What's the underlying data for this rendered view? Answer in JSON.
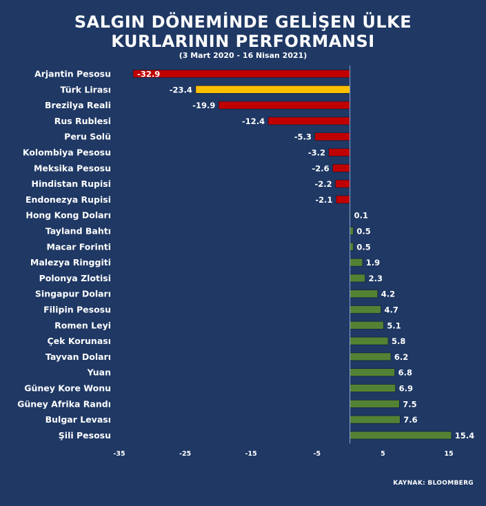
{
  "header": {
    "title_line1": "SALGIN DÖNEMİNDE GELİŞEN ÜLKE",
    "title_line2": "KURLARININ PERFORMANSI",
    "subtitle": "(3 Mart 2020 - 16 Nisan 2021)"
  },
  "footer": {
    "source": "KAYNAK: BLOOMBERG"
  },
  "colors": {
    "background": "#1f3864",
    "negative": "#c00000",
    "highlight": "#ffc000",
    "positive": "#548235"
  },
  "chart_data": {
    "type": "bar",
    "orientation": "horizontal",
    "title": "SALGIN DÖNEMİNDE GELİŞEN ÜLKE KURLARININ PERFORMANSI",
    "subtitle": "(3 Mart 2020 - 16 Nisan 2021)",
    "categories": [
      "Arjantin Pesosu",
      "Türk Lirası",
      "Brezilya Reali",
      "Rus Rublesi",
      "Peru Solü",
      "Kolombiya Pesosu",
      "Meksika Pesosu",
      "Hindistan Rupisi",
      "Endonezya Rupisi",
      "Hong Kong Doları",
      "Tayland Bahtı",
      "Macar Forinti",
      "Malezya Ringgiti",
      "Polonya Zlotisi",
      "Singapur Doları",
      "Filipin Pesosu",
      "Romen Leyi",
      "Çek Korunası",
      "Tayvan Doları",
      "Yuan",
      "Güney Kore Wonu",
      "Güney Afrika Randı",
      "Bulgar Levası",
      "Şili Pesosu"
    ],
    "values": [
      -32.9,
      -23.4,
      -19.9,
      -12.4,
      -5.3,
      -3.2,
      -2.6,
      -2.2,
      -2.1,
      0.1,
      0.5,
      0.5,
      1.9,
      2.3,
      4.2,
      4.7,
      5.1,
      5.8,
      6.2,
      6.8,
      6.9,
      7.5,
      7.6,
      15.4
    ],
    "value_labels": [
      "-32.9",
      "-23.4",
      "-19.9",
      "-12.4",
      "-5.3",
      "-3.2",
      "-2.6",
      "-2.2",
      "-2.1",
      "0.1",
      "0.5",
      "0.5",
      "1.9",
      "2.3",
      "4.2",
      "4.7",
      "5.1",
      "5.8",
      "6.2",
      "6.8",
      "6.9",
      "7.5",
      "7.6",
      "15.4"
    ],
    "highlight_category": "Türk Lirası",
    "xlim": [
      -35,
      15
    ],
    "xticks": [
      -35,
      -25,
      -15,
      -5,
      5,
      15
    ],
    "xlabel": "",
    "ylabel": "",
    "grid": false,
    "legend": "none"
  }
}
